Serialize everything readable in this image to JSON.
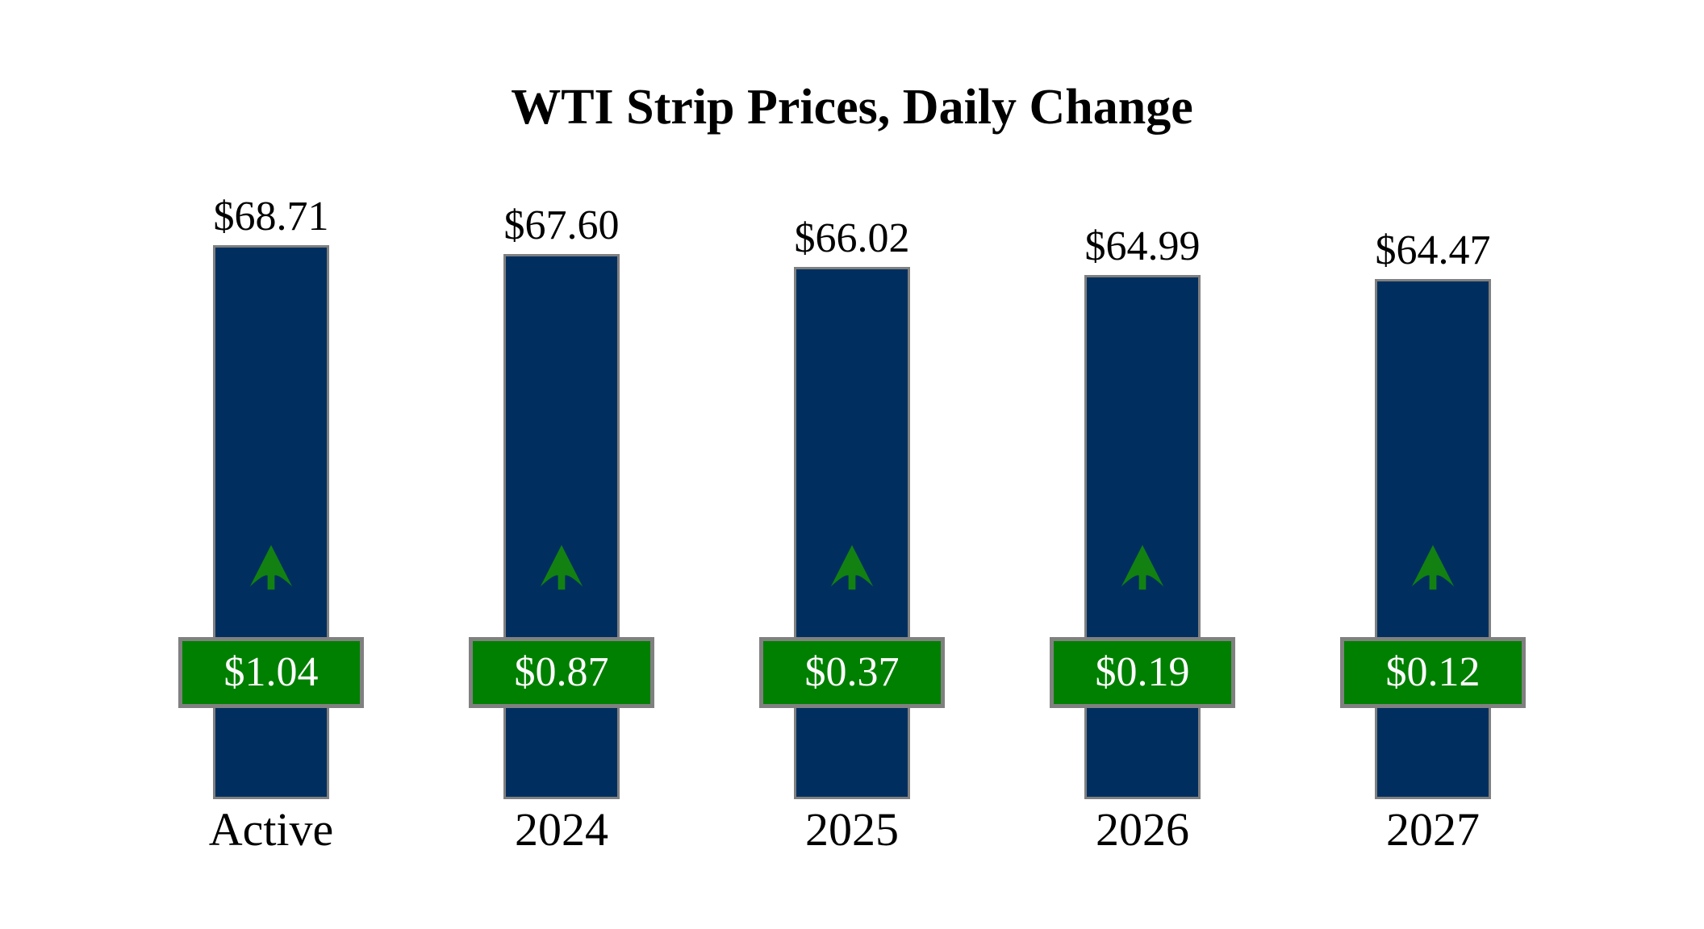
{
  "title": "WTI Strip Prices, Daily Change",
  "colors": {
    "background": "#ffffff",
    "label_text": "#000000",
    "bar_fill": "#002f5f",
    "bar_border": "#808080",
    "badge_fill": "#008000",
    "badge_border": "#808080",
    "badge_text": "#ffffff",
    "arrow_green": "#128112"
  },
  "chart_data": {
    "type": "bar",
    "title": "WTI Strip Prices, Daily Change",
    "categories": [
      "Active",
      "2024",
      "2025",
      "2026",
      "2027"
    ],
    "values": [
      68.71,
      67.6,
      66.02,
      64.99,
      64.47
    ],
    "value_labels": [
      "$68.71",
      "$67.60",
      "$66.02",
      "$64.99",
      "$64.47"
    ],
    "series": [
      {
        "name": "WTI strip price",
        "values": [
          68.71,
          67.6,
          66.02,
          64.99,
          64.47
        ]
      },
      {
        "name": "Daily change",
        "values": [
          1.04,
          0.87,
          0.37,
          0.19,
          0.12
        ]
      }
    ],
    "change_labels": [
      "$1.04",
      "$0.87",
      "$0.37",
      "$0.19",
      "$0.12"
    ],
    "change_direction": [
      "up",
      "up",
      "up",
      "up",
      "up"
    ],
    "xlabel": "",
    "ylabel": "",
    "ylim": [
      0,
      70
    ],
    "grid": false,
    "legend": false
  }
}
